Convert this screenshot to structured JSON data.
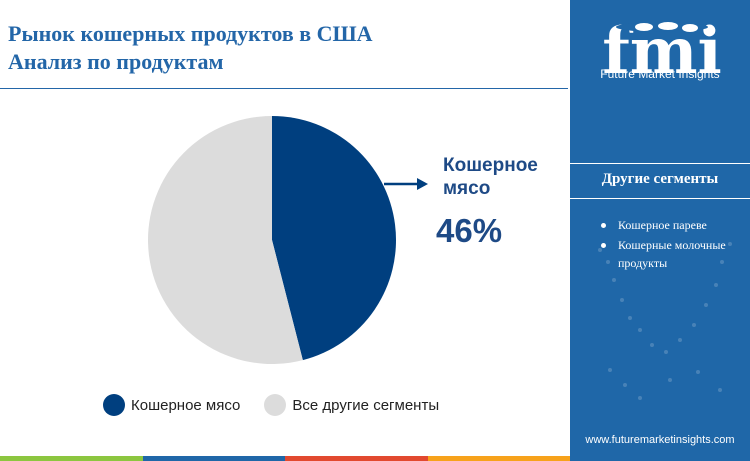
{
  "title": {
    "line1": "Рынок кошерных продуктов в США",
    "line2": "Анализ по продуктам"
  },
  "chart_data": {
    "type": "pie",
    "categories": [
      "Кошерное мясо",
      "Все другие сегменты"
    ],
    "values": [
      46,
      54
    ],
    "unit": "%",
    "colors": [
      "#003f7f",
      "#dcdcdc"
    ],
    "callout": {
      "label": "Кошерное мясо",
      "value": "46%"
    },
    "legend": [
      "Кошерное мясо",
      "Все другие сегменты"
    ],
    "legend_position": "bottom"
  },
  "side_panel": {
    "brand_logo_text": "fmi",
    "brand_name": "Future Market Insights",
    "segments_heading": "Другие сегменты",
    "segments": [
      "Кошерное пареве",
      "Кошерные молочные продукты"
    ],
    "website": "www.futuremarketinsights.com"
  },
  "colors": {
    "accent": "#2366a8",
    "panel_bg": "#1f67a8",
    "dark_slice": "#003f7f",
    "light_slice": "#dcdcdc",
    "bottom_bar": [
      "#8cc63f",
      "#1f67a8",
      "#e2492f",
      "#f7a21b"
    ]
  },
  "icons": [
    "globe-map-icon",
    "arrow-right-icon"
  ]
}
